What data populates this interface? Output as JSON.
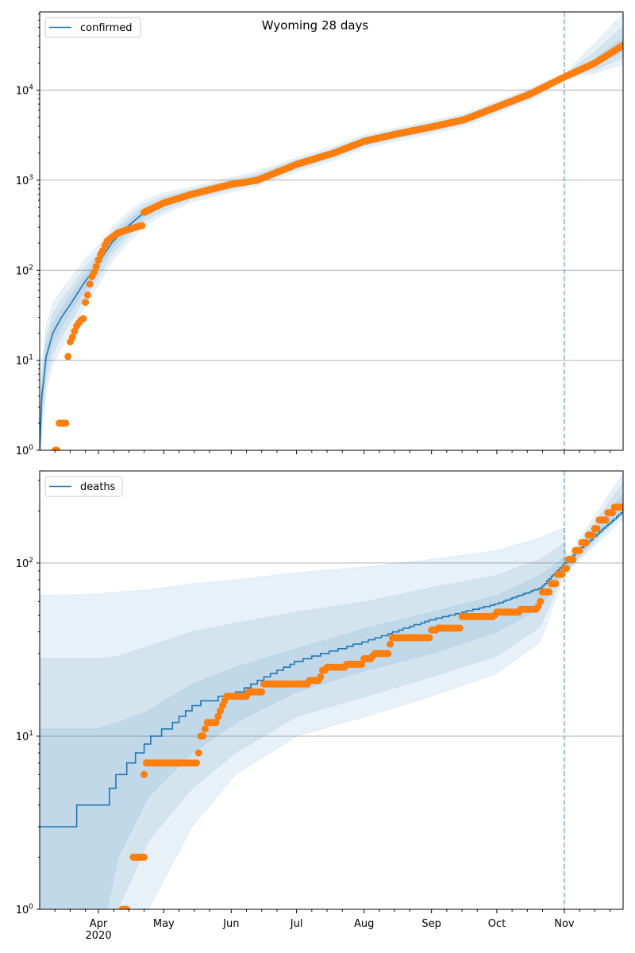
{
  "chart_data": [
    {
      "type": "line",
      "title": "Wyoming 28 days",
      "yscale": "log",
      "ylim": [
        1,
        74000
      ],
      "xlim_dates": [
        "2020-03-05",
        "2020-11-28"
      ],
      "grid": "y-major",
      "legend": {
        "label": "confirmed",
        "placement": "top-left"
      },
      "forecast_marker": {
        "date": "2020-11-01",
        "day": 241
      },
      "xticks": [
        {
          "day": 27,
          "label": "Apr",
          "sub": "2020"
        },
        {
          "day": 57,
          "label": "May"
        },
        {
          "day": 88,
          "label": "Jun"
        },
        {
          "day": 118,
          "label": "Jul"
        },
        {
          "day": 149,
          "label": "Aug"
        },
        {
          "day": 180,
          "label": "Sep"
        },
        {
          "day": 210,
          "label": "Oct"
        },
        {
          "day": 241,
          "label": "Nov"
        }
      ],
      "show_xtick_labels": false,
      "yticks": [
        {
          "value": 1,
          "base": "10",
          "exp": "0"
        },
        {
          "value": 10,
          "base": "10",
          "exp": "1"
        },
        {
          "value": 100,
          "base": "10",
          "exp": "2"
        },
        {
          "value": 1000,
          "base": "10",
          "exp": "3"
        },
        {
          "value": 10000,
          "base": "10",
          "exp": "4"
        }
      ],
      "median_model": [
        [
          0,
          1
        ],
        [
          1,
          4
        ],
        [
          3,
          11
        ],
        [
          6,
          20
        ],
        [
          10,
          30
        ],
        [
          15,
          45
        ],
        [
          20,
          70
        ],
        [
          27,
          120
        ],
        [
          33,
          200
        ],
        [
          40,
          300
        ],
        [
          48,
          440
        ],
        [
          57,
          560
        ],
        [
          70,
          700
        ],
        [
          88,
          900
        ],
        [
          100,
          1050
        ],
        [
          118,
          1500
        ],
        [
          135,
          2000
        ],
        [
          149,
          2700
        ],
        [
          165,
          3300
        ],
        [
          180,
          3900
        ],
        [
          195,
          4700
        ],
        [
          210,
          6500
        ],
        [
          225,
          9000
        ],
        [
          241,
          14000
        ],
        [
          255,
          20000
        ],
        [
          268,
          32000
        ]
      ],
      "median_step": false,
      "band_factors": [
        [
          0,
          0.4,
          0.55,
          0.75,
          1.3,
          1.7,
          2.3
        ],
        [
          30,
          0.6,
          0.72,
          0.85,
          1.15,
          1.3,
          1.5
        ],
        [
          70,
          0.82,
          0.88,
          0.94,
          1.06,
          1.12,
          1.2
        ],
        [
          230,
          0.85,
          0.9,
          0.95,
          1.05,
          1.1,
          1.15
        ],
        [
          241,
          0.95,
          0.97,
          0.99,
          1.01,
          1.03,
          1.05
        ],
        [
          268,
          0.6,
          0.72,
          0.85,
          1.2,
          1.6,
          2.2
        ]
      ],
      "observed": [
        [
          7,
          1
        ],
        [
          8,
          1
        ],
        [
          9,
          2
        ],
        [
          10,
          2
        ],
        [
          11,
          2
        ],
        [
          12,
          2
        ],
        [
          13,
          11
        ],
        [
          14,
          16
        ],
        [
          15,
          18
        ],
        [
          16,
          21
        ],
        [
          17,
          24
        ],
        [
          18,
          26
        ],
        [
          19,
          28
        ],
        [
          20,
          29
        ],
        [
          21,
          44
        ],
        [
          22,
          53
        ],
        [
          23,
          70
        ],
        [
          24,
          85
        ],
        [
          25,
          95
        ],
        [
          26,
          110
        ],
        [
          27,
          130
        ],
        [
          28,
          150
        ],
        [
          29,
          165
        ],
        [
          30,
          190
        ],
        [
          31,
          210
        ],
        [
          33,
          230
        ],
        [
          36,
          260
        ],
        [
          40,
          280
        ],
        [
          44,
          300
        ],
        [
          47,
          313
        ],
        [
          48,
          440
        ],
        [
          57,
          560
        ],
        [
          70,
          700
        ],
        [
          88,
          900
        ],
        [
          100,
          1000
        ],
        [
          118,
          1500
        ],
        [
          135,
          2000
        ],
        [
          149,
          2700
        ],
        [
          165,
          3300
        ],
        [
          180,
          3900
        ],
        [
          195,
          4700
        ],
        [
          210,
          6500
        ],
        [
          225,
          9000
        ],
        [
          241,
          14000
        ],
        [
          255,
          20000
        ],
        [
          268,
          31500
        ]
      ],
      "observed_runs": null
    },
    {
      "type": "line",
      "yscale": "log",
      "ylim": [
        1,
        340
      ],
      "xlim_dates": [
        "2020-03-05",
        "2020-11-28"
      ],
      "grid": "y-major",
      "legend": {
        "label": "deaths",
        "placement": "top-left"
      },
      "forecast_marker": {
        "date": "2020-11-01",
        "day": 241
      },
      "xticks": [
        {
          "day": 27,
          "label": "Apr",
          "sub": "2020"
        },
        {
          "day": 57,
          "label": "May"
        },
        {
          "day": 88,
          "label": "Jun"
        },
        {
          "day": 118,
          "label": "Jul"
        },
        {
          "day": 149,
          "label": "Aug"
        },
        {
          "day": 180,
          "label": "Sep"
        },
        {
          "day": 210,
          "label": "Oct"
        },
        {
          "day": 241,
          "label": "Nov"
        }
      ],
      "show_xtick_labels": true,
      "yticks": [
        {
          "value": 1,
          "base": "10",
          "exp": "0"
        },
        {
          "value": 10,
          "base": "10",
          "exp": "1"
        },
        {
          "value": 100,
          "base": "10",
          "exp": "2"
        }
      ],
      "median_model": [
        [
          0,
          3
        ],
        [
          16,
          3.4
        ],
        [
          17,
          4
        ],
        [
          31,
          4.4
        ],
        [
          32,
          5
        ],
        [
          37,
          6
        ],
        [
          42,
          7
        ],
        [
          45,
          8
        ],
        [
          49,
          9
        ],
        [
          52,
          10
        ],
        [
          59,
          11
        ],
        [
          62,
          12
        ],
        [
          65,
          13
        ],
        [
          68,
          14
        ],
        [
          75,
          16
        ],
        [
          88,
          17
        ],
        [
          98,
          20
        ],
        [
          118,
          27
        ],
        [
          149,
          35
        ],
        [
          180,
          47
        ],
        [
          210,
          58
        ],
        [
          230,
          72
        ],
        [
          241,
          100
        ],
        [
          268,
          200
        ]
      ],
      "median_step": true,
      "bands": [
        [
          0,
          0.5,
          0.5,
          0.5,
          11,
          28,
          65
        ],
        [
          26,
          0.5,
          0.5,
          0.5,
          11,
          28,
          66
        ],
        [
          36,
          0.5,
          1,
          2,
          12,
          29,
          68
        ],
        [
          50,
          1,
          2.5,
          4.5,
          14,
          33,
          70
        ],
        [
          70,
          3,
          5,
          8,
          20,
          40,
          76
        ],
        [
          90,
          6,
          8,
          12,
          25,
          45,
          80
        ],
        [
          118,
          10,
          13,
          18,
          32,
          52,
          88
        ],
        [
          150,
          13,
          17,
          24,
          42,
          60,
          95
        ],
        [
          180,
          17,
          22,
          30,
          52,
          72,
          105
        ],
        [
          210,
          23,
          29,
          40,
          65,
          85,
          118
        ],
        [
          230,
          35,
          43,
          55,
          85,
          105,
          140
        ],
        [
          241,
          85,
          90,
          95,
          108,
          130,
          160
        ],
        [
          242,
          88,
          90,
          92,
          97,
          102,
          106
        ],
        [
          268,
          180,
          195,
          205,
          250,
          290,
          330
        ]
      ],
      "observed": null,
      "observed_runs": [
        [
          38,
          40,
          1
        ],
        [
          43,
          48,
          2
        ],
        [
          48,
          48,
          6
        ],
        [
          49,
          72,
          7
        ],
        [
          73,
          73,
          8
        ],
        [
          74,
          75,
          10
        ],
        [
          76,
          76,
          11
        ],
        [
          77,
          81,
          12
        ],
        [
          82,
          82,
          13
        ],
        [
          83,
          83,
          14
        ],
        [
          84,
          84,
          15
        ],
        [
          85,
          85,
          16
        ],
        [
          86,
          95,
          17
        ],
        [
          96,
          102,
          18
        ],
        [
          103,
          123,
          20
        ],
        [
          124,
          128,
          21
        ],
        [
          129,
          129,
          22
        ],
        [
          130,
          131,
          24
        ],
        [
          132,
          140,
          25
        ],
        [
          141,
          148,
          26
        ],
        [
          149,
          152,
          28
        ],
        [
          153,
          153,
          29
        ],
        [
          154,
          160,
          30
        ],
        [
          161,
          161,
          34
        ],
        [
          162,
          179,
          37
        ],
        [
          180,
          182,
          41
        ],
        [
          183,
          193,
          42
        ],
        [
          194,
          208,
          49
        ],
        [
          209,
          209,
          50
        ],
        [
          210,
          220,
          52
        ],
        [
          221,
          228,
          54
        ],
        [
          229,
          229,
          56
        ],
        [
          230,
          230,
          60
        ],
        [
          231,
          234,
          68
        ],
        [
          235,
          237,
          76
        ],
        [
          238,
          240,
          86
        ],
        [
          241,
          242,
          93
        ],
        [
          243,
          245,
          105
        ],
        [
          246,
          248,
          118
        ],
        [
          249,
          251,
          131
        ],
        [
          252,
          254,
          145
        ],
        [
          255,
          256,
          158
        ],
        [
          257,
          260,
          177
        ],
        [
          261,
          263,
          195
        ],
        [
          264,
          268,
          210
        ]
      ]
    }
  ],
  "colors": {
    "model": "#1f77b4",
    "observed": "#ff7f0e",
    "grid": "#b0b0b0"
  }
}
